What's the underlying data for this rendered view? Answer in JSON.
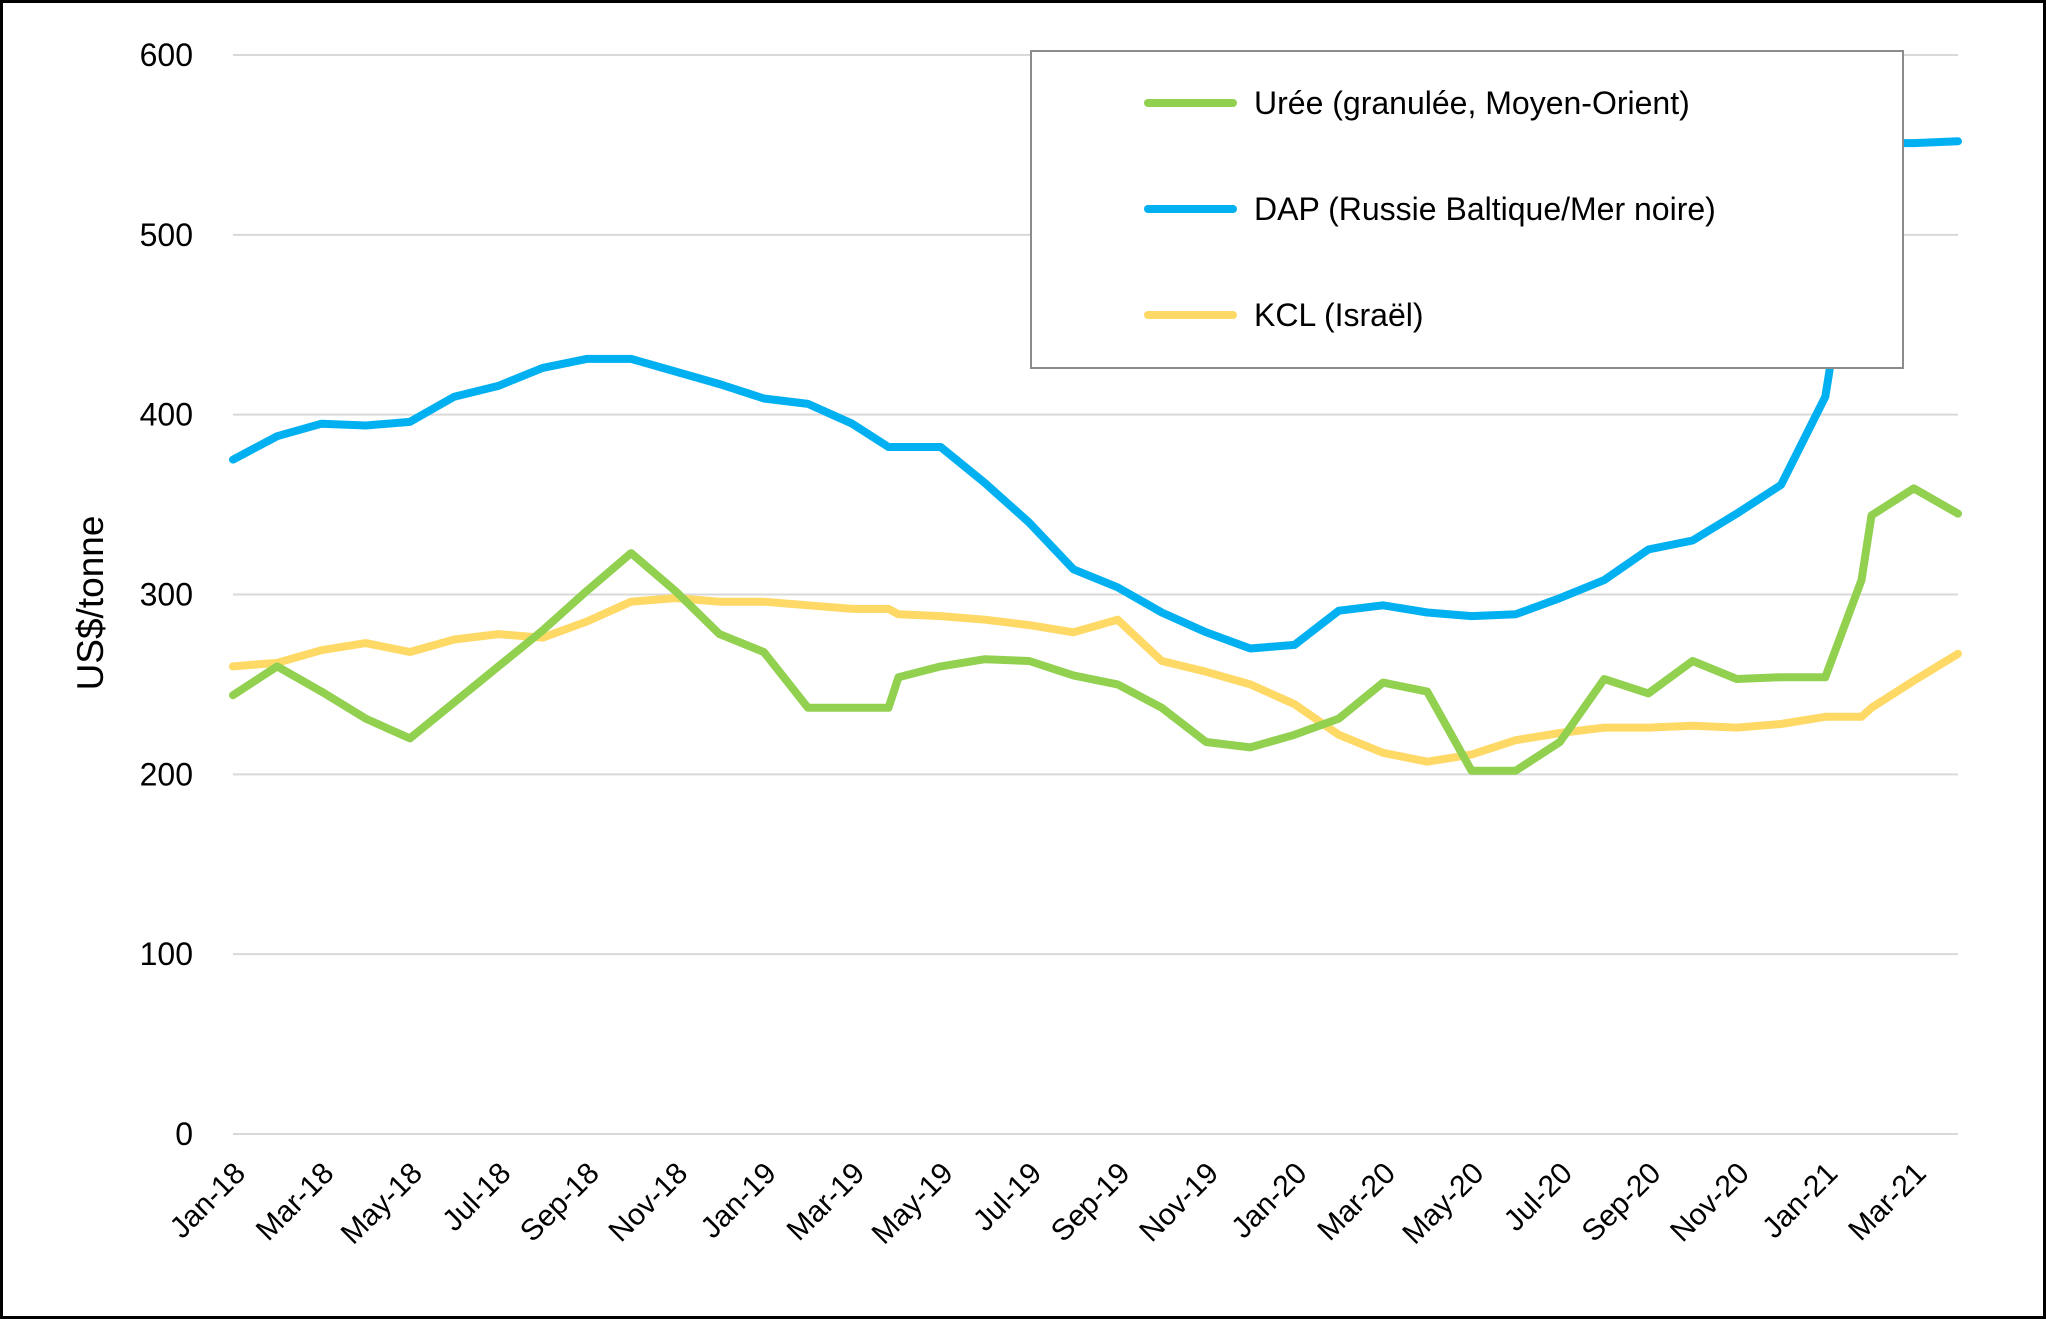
{
  "chart_data": {
    "type": "line",
    "ylabel": "US$/tonne",
    "xlabel": "",
    "ylim": [
      0,
      600
    ],
    "yticks": [
      0,
      100,
      200,
      300,
      400,
      500,
      600
    ],
    "grid": "horizontal",
    "legend_position": "top-right",
    "x_tick_labels": [
      "Jan-18",
      "Mar-18",
      "May-18",
      "Jul-18",
      "Sep-18",
      "Nov-18",
      "Jan-19",
      "Mar-19",
      "May-19",
      "Jul-19",
      "Sep-19",
      "Nov-19",
      "Jan-20",
      "Mar-20",
      "May-20",
      "Jul-20",
      "Sep-20",
      "Nov-20",
      "Jan-21",
      "Mar-21"
    ],
    "x": [
      "Jan-18",
      "Feb-18",
      "Mar-18",
      "Apr-18",
      "May-18",
      "Jun-18",
      "Jul-18",
      "Aug-18",
      "Sep-18",
      "Oct-18",
      "Nov-18",
      "Dec-18",
      "Jan-19",
      "Feb-19",
      "Mar-19",
      "Apr-19",
      "Apr-19",
      "May-19",
      "Jun-19",
      "Jul-19",
      "Aug-19",
      "Sep-19",
      "Oct-19",
      "Nov-19",
      "Dec-19",
      "Jan-20",
      "Feb-20",
      "Mar-20",
      "Apr-20",
      "May-20",
      "Jun-20",
      "Jul-20",
      "Aug-20",
      "Sep-20",
      "Oct-20",
      "Nov-20",
      "Dec-20",
      "Jan-21",
      "Feb-21",
      "Feb-21",
      "Mar-21",
      "Apr-21"
    ],
    "series": [
      {
        "name": "Urée (granulée, Moyen-Orient)",
        "color": "#92d050",
        "values": [
          244,
          260,
          246,
          231,
          220,
          240,
          260,
          280,
          302,
          323,
          302,
          278,
          268,
          237,
          237,
          237,
          254,
          260,
          264,
          263,
          255,
          250,
          237,
          218,
          215,
          222,
          231,
          251,
          246,
          202,
          202,
          218,
          253,
          245,
          263,
          253,
          254,
          254,
          308,
          344,
          359,
          345
        ]
      },
      {
        "name": "DAP (Russie Baltique/Mer noire)",
        "color": "#00b0f0",
        "values": [
          375,
          388,
          395,
          394,
          396,
          410,
          416,
          426,
          431,
          431,
          424,
          417,
          409,
          406,
          395,
          382,
          382,
          382,
          362,
          340,
          314,
          304,
          290,
          279,
          270,
          272,
          291,
          294,
          290,
          288,
          289,
          298,
          308,
          325,
          330,
          345,
          361,
          410,
          535,
          551,
          551,
          552
        ]
      },
      {
        "name": "KCL (Israël)",
        "color": "#ffd966",
        "values": [
          260,
          262,
          269,
          273,
          268,
          275,
          278,
          276,
          285,
          296,
          298,
          296,
          296,
          294,
          292,
          292,
          289,
          288,
          286,
          283,
          279,
          286,
          263,
          257,
          250,
          239,
          222,
          212,
          207,
          211,
          219,
          223,
          226,
          226,
          227,
          226,
          228,
          232,
          232,
          237,
          252,
          267
        ]
      }
    ]
  }
}
